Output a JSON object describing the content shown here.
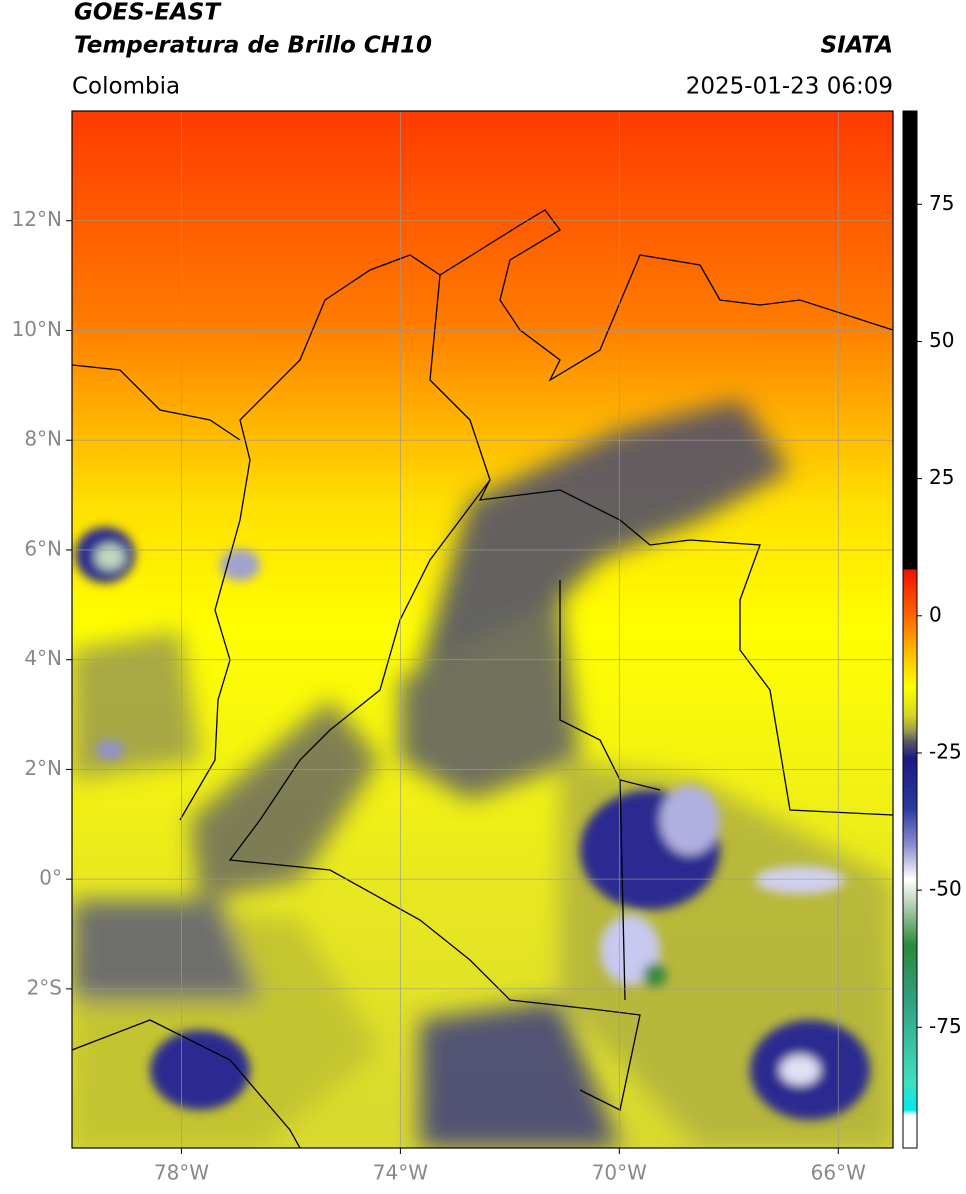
{
  "map": {
    "title": "GOES-EAST",
    "subtitle": "Temperatura de Brillo CH10",
    "source": "SIATA",
    "region": "Colombia",
    "datetime": "2025-01-23 06:09",
    "xlim": [
      -80,
      -65
    ],
    "ylim": [
      -4.9,
      14
    ],
    "xticks": [
      {
        "value": -78,
        "label": "78°W"
      },
      {
        "value": -74,
        "label": "74°W"
      },
      {
        "value": -70,
        "label": "70°W"
      },
      {
        "value": -66,
        "label": "66°W"
      }
    ],
    "yticks": [
      {
        "value": 12,
        "label": "12°N"
      },
      {
        "value": 10,
        "label": "10°N"
      },
      {
        "value": 8,
        "label": "8°N"
      },
      {
        "value": 6,
        "label": "6°N"
      },
      {
        "value": 4,
        "label": "4°N"
      },
      {
        "value": 2,
        "label": "2°N"
      },
      {
        "value": 0,
        "label": "0°"
      },
      {
        "value": -2,
        "label": "2°S"
      }
    ],
    "grid": true
  },
  "colorbar": {
    "ylim": [
      -97,
      92
    ],
    "yticks": [
      75,
      50,
      25,
      0,
      -25,
      -50,
      -75
    ],
    "stops": [
      {
        "value": 92,
        "color": "#000000"
      },
      {
        "value": 8.5,
        "color": "#000000"
      },
      {
        "value": 8.4,
        "color": "#ee1100"
      },
      {
        "value": 0,
        "color": "#ff6600"
      },
      {
        "value": -8,
        "color": "#ffcc00"
      },
      {
        "value": -13,
        "color": "#ffff00"
      },
      {
        "value": -18,
        "color": "#d8d820"
      },
      {
        "value": -21,
        "color": "#9a9a50"
      },
      {
        "value": -23,
        "color": "#555566"
      },
      {
        "value": -26,
        "color": "#1a1a80"
      },
      {
        "value": -35,
        "color": "#2a3aa0"
      },
      {
        "value": -42,
        "color": "#9090d0"
      },
      {
        "value": -48,
        "color": "#ffffff"
      },
      {
        "value": -52,
        "color": "#c0d8c0"
      },
      {
        "value": -60,
        "color": "#2a8a3a"
      },
      {
        "value": -70,
        "color": "#30a080"
      },
      {
        "value": -85,
        "color": "#40e0c0"
      },
      {
        "value": -90,
        "color": "#00e8e8"
      },
      {
        "value": -91,
        "color": "#ffffff"
      },
      {
        "value": -97,
        "color": "#ffffff"
      }
    ]
  }
}
